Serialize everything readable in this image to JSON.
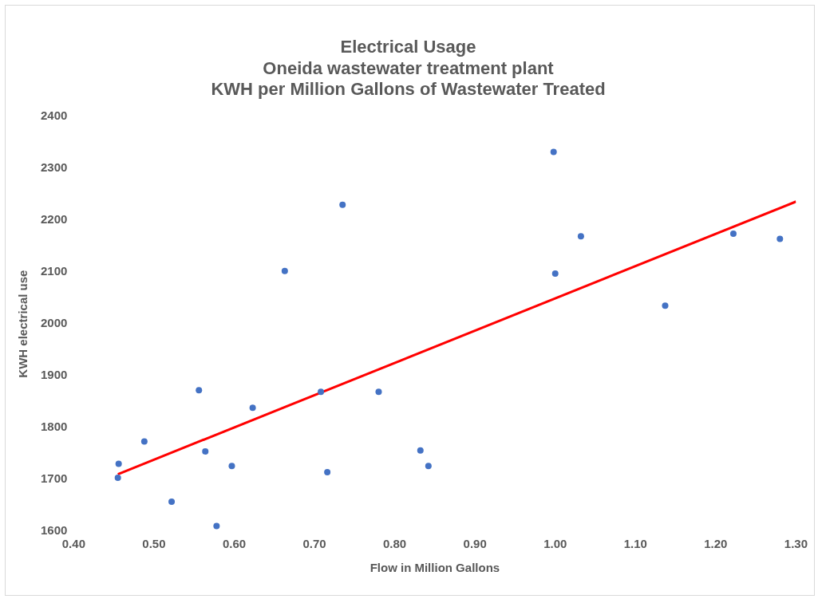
{
  "chart_data": {
    "type": "scatter",
    "title": "Electrical Usage\nOneida wastewater treatment plant\nKWH per Million Gallons of Wastewater Treated",
    "xlabel": "Flow in Million Gallons",
    "ylabel": "KWH electrical use",
    "xlim": [
      0.4,
      1.3
    ],
    "xticks": [
      {
        "value": 0.4,
        "label": "0.40"
      },
      {
        "value": 0.5,
        "label": "0.50"
      },
      {
        "value": 0.6,
        "label": "0.60"
      },
      {
        "value": 0.7,
        "label": "0.70"
      },
      {
        "value": 0.8,
        "label": "0.80"
      },
      {
        "value": 0.9,
        "label": "0.90"
      },
      {
        "value": 1.0,
        "label": "1.00"
      },
      {
        "value": 1.1,
        "label": "1.10"
      },
      {
        "value": 1.2,
        "label": "1.20"
      },
      {
        "value": 1.3,
        "label": "1.30"
      }
    ],
    "ylim": [
      1600,
      2400
    ],
    "yticks": [
      1600,
      1700,
      1800,
      1900,
      2000,
      2100,
      2200,
      2300,
      2400
    ],
    "grid": false,
    "legend": false,
    "series": [
      {
        "marker": "circle",
        "color": "#4472c4",
        "x": [
          0.455,
          0.456,
          0.488,
          0.522,
          0.556,
          0.564,
          0.578,
          0.597,
          0.623,
          0.663,
          0.708,
          0.716,
          0.735,
          0.78,
          0.832,
          0.842,
          0.998,
          1.0,
          1.032,
          1.137,
          1.222,
          1.28
        ],
        "values": [
          1703,
          1730,
          1773,
          1657,
          1872,
          1754,
          1610,
          1726,
          1838,
          2102,
          1869,
          1714,
          2230,
          1869,
          1756,
          1726,
          2332,
          2097,
          2169,
          2035,
          2174,
          2164
        ]
      },
      {
        "type": "line",
        "marker": "none",
        "color": "#ff0000",
        "x": [
          0.455,
          1.3
        ],
        "values": [
          1710,
          2236
        ]
      }
    ]
  }
}
